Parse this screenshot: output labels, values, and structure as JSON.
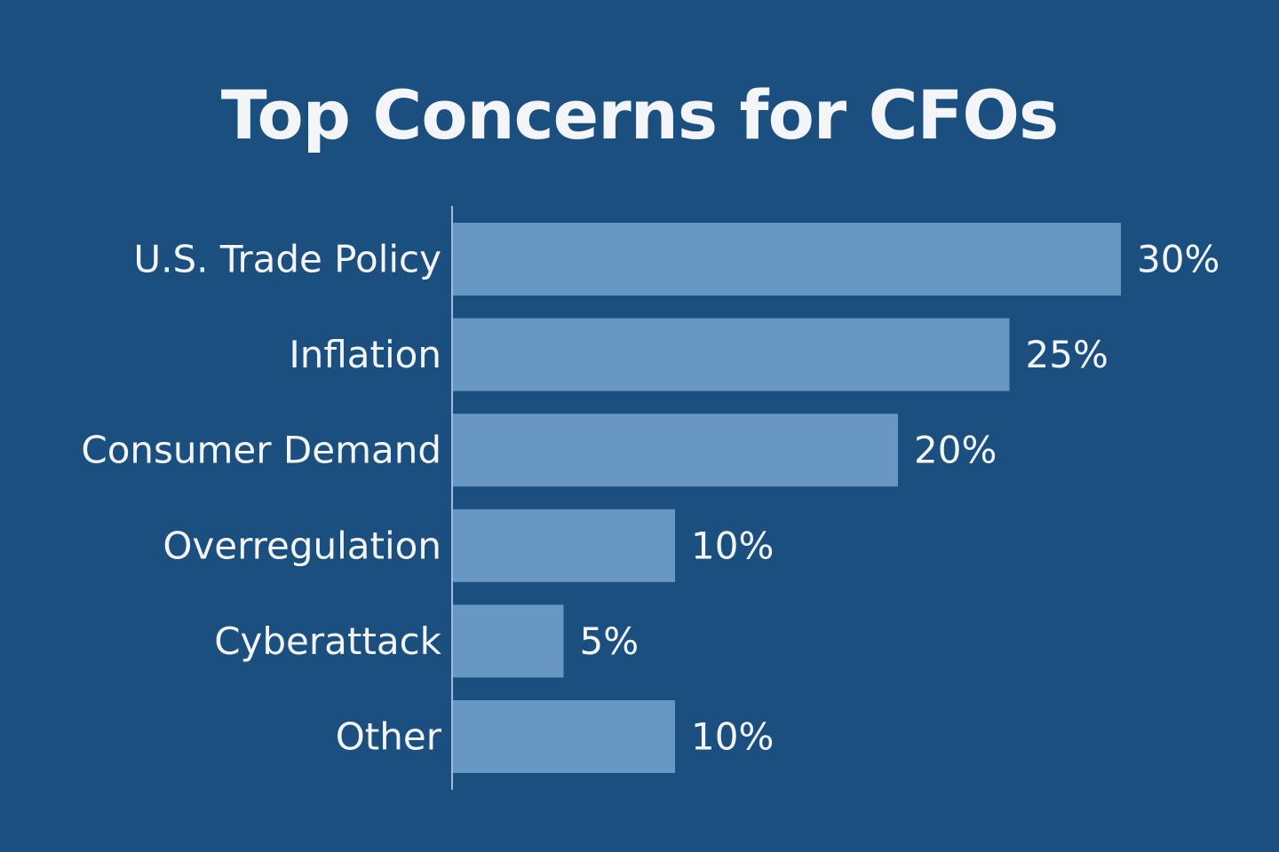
{
  "colors": {
    "background": "#1b4f80",
    "bar": "#6797c2",
    "text": "#f3f5f8",
    "axis": "#9fbad6"
  },
  "chart_data": {
    "type": "bar",
    "orientation": "horizontal",
    "title": "Top Concerns for CFOs",
    "xlabel": "",
    "ylabel": "",
    "xlim": [
      0,
      30
    ],
    "grid": false,
    "legend": "none",
    "categories": [
      "U.S. Trade Policy",
      "Inflation",
      "Consumer Demand",
      "Overregulation",
      "Cyberattack",
      "Other"
    ],
    "values": [
      30,
      25,
      20,
      10,
      5,
      10
    ],
    "value_labels": [
      "30%",
      "25%",
      "20%",
      "10%",
      "5%",
      "10%"
    ],
    "unit": "%"
  }
}
